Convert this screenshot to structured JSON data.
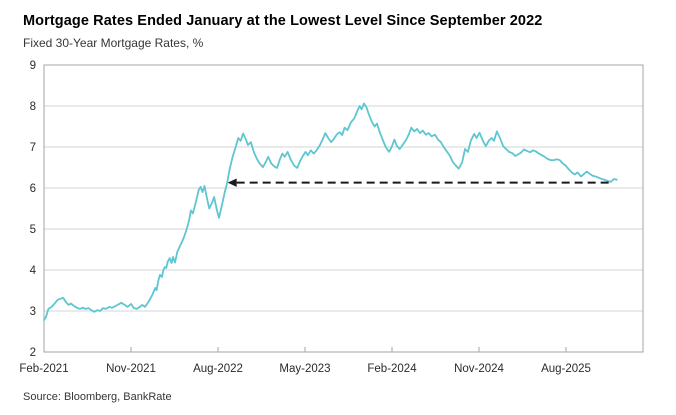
{
  "header": {
    "title": "Mortgage Rates Ended January at the Lowest Level Since September 2022",
    "subtitle": "Fixed 30-Year Mortgage Rates, %"
  },
  "footer": {
    "source": "Source: Bloomberg, BankRate"
  },
  "chart_data": {
    "type": "line",
    "title": "Mortgage Rates Ended January at the Lowest Level Since September 2022",
    "subtitle": "Fixed 30-Year Mortgage Rates, %",
    "source": "Source: Bloomberg, BankRate",
    "legend": "none",
    "grid": "horizontal",
    "colors": {
      "line": "#5ec6d0",
      "grid": "#d6d6d6",
      "axis": "#a6a6a6",
      "annotation": "#1a1a1a",
      "tick_text": "#2b2b2b"
    },
    "x_axis": {
      "unit": "months since Feb-2021",
      "range": [
        0,
        62
      ],
      "ticks": [
        {
          "m": 0,
          "label": "Feb-2021"
        },
        {
          "m": 9,
          "label": "Nov-2021"
        },
        {
          "m": 18,
          "label": "Aug-2022"
        },
        {
          "m": 27,
          "label": "May-2023"
        },
        {
          "m": 36,
          "label": "Feb-2024"
        },
        {
          "m": 45,
          "label": "Nov-2024"
        },
        {
          "m": 54,
          "label": "Aug-2025"
        }
      ]
    },
    "y_axis": {
      "range": [
        2,
        9
      ],
      "ticks": [
        9,
        8,
        7,
        6,
        5,
        4,
        3,
        2
      ],
      "gridline_values": [
        3,
        4,
        5,
        6,
        7,
        8
      ]
    },
    "annotation": {
      "type": "dashed-horizontal-arrow-left",
      "value": 6.13,
      "from_month": 19.0,
      "to_month": 58.75
    },
    "series": [
      {
        "name": "Fixed 30-Year Mortgage Rate, %",
        "color": "#5ec6d0",
        "points": [
          [
            0,
            2.78
          ],
          [
            0.2,
            2.85
          ],
          [
            0.45,
            3.05
          ],
          [
            0.8,
            3.1
          ],
          [
            1.1,
            3.18
          ],
          [
            1.4,
            3.27
          ],
          [
            1.7,
            3.3
          ],
          [
            2.0,
            3.32
          ],
          [
            2.25,
            3.22
          ],
          [
            2.55,
            3.15
          ],
          [
            2.8,
            3.18
          ],
          [
            3.1,
            3.12
          ],
          [
            3.4,
            3.08
          ],
          [
            3.7,
            3.05
          ],
          [
            4.0,
            3.08
          ],
          [
            4.3,
            3.05
          ],
          [
            4.6,
            3.07
          ],
          [
            4.9,
            3.02
          ],
          [
            5.2,
            2.98
          ],
          [
            5.5,
            3.02
          ],
          [
            5.8,
            3.0
          ],
          [
            6.1,
            3.07
          ],
          [
            6.4,
            3.05
          ],
          [
            6.75,
            3.1
          ],
          [
            7.05,
            3.08
          ],
          [
            7.4,
            3.12
          ],
          [
            7.7,
            3.16
          ],
          [
            8.0,
            3.2
          ],
          [
            8.35,
            3.15
          ],
          [
            8.65,
            3.1
          ],
          [
            9.0,
            3.17
          ],
          [
            9.3,
            3.07
          ],
          [
            9.6,
            3.05
          ],
          [
            9.9,
            3.1
          ],
          [
            10.15,
            3.15
          ],
          [
            10.45,
            3.1
          ],
          [
            10.8,
            3.22
          ],
          [
            11.2,
            3.39
          ],
          [
            11.5,
            3.56
          ],
          [
            11.65,
            3.51
          ],
          [
            11.85,
            3.76
          ],
          [
            12.0,
            3.88
          ],
          [
            12.2,
            3.83
          ],
          [
            12.35,
            4.0
          ],
          [
            12.5,
            4.07
          ],
          [
            12.65,
            4.05
          ],
          [
            12.8,
            4.2
          ],
          [
            13.0,
            4.29
          ],
          [
            13.2,
            4.17
          ],
          [
            13.35,
            4.32
          ],
          [
            13.55,
            4.18
          ],
          [
            13.8,
            4.45
          ],
          [
            14.1,
            4.6
          ],
          [
            14.4,
            4.75
          ],
          [
            14.7,
            4.95
          ],
          [
            15.0,
            5.2
          ],
          [
            15.2,
            5.45
          ],
          [
            15.4,
            5.38
          ],
          [
            15.7,
            5.65
          ],
          [
            16.0,
            5.95
          ],
          [
            16.2,
            6.03
          ],
          [
            16.4,
            5.9
          ],
          [
            16.6,
            6.05
          ],
          [
            16.9,
            5.7
          ],
          [
            17.1,
            5.5
          ],
          [
            17.4,
            5.65
          ],
          [
            17.6,
            5.78
          ],
          [
            17.9,
            5.45
          ],
          [
            18.1,
            5.27
          ],
          [
            18.4,
            5.58
          ],
          [
            18.7,
            5.9
          ],
          [
            18.95,
            6.13
          ],
          [
            19.2,
            6.45
          ],
          [
            19.5,
            6.75
          ],
          [
            19.8,
            6.98
          ],
          [
            20.1,
            7.22
          ],
          [
            20.35,
            7.15
          ],
          [
            20.6,
            7.33
          ],
          [
            20.85,
            7.2
          ],
          [
            21.1,
            7.05
          ],
          [
            21.4,
            7.12
          ],
          [
            21.7,
            6.88
          ],
          [
            22.0,
            6.72
          ],
          [
            22.3,
            6.6
          ],
          [
            22.65,
            6.51
          ],
          [
            23.0,
            6.66
          ],
          [
            23.2,
            6.76
          ],
          [
            23.5,
            6.6
          ],
          [
            23.8,
            6.53
          ],
          [
            24.1,
            6.49
          ],
          [
            24.4,
            6.7
          ],
          [
            24.65,
            6.84
          ],
          [
            24.9,
            6.76
          ],
          [
            25.2,
            6.88
          ],
          [
            25.55,
            6.68
          ],
          [
            25.9,
            6.54
          ],
          [
            26.2,
            6.49
          ],
          [
            26.5,
            6.66
          ],
          [
            26.8,
            6.79
          ],
          [
            27.05,
            6.88
          ],
          [
            27.3,
            6.8
          ],
          [
            27.6,
            6.92
          ],
          [
            27.9,
            6.84
          ],
          [
            28.2,
            6.92
          ],
          [
            28.55,
            7.05
          ],
          [
            28.85,
            7.2
          ],
          [
            29.1,
            7.34
          ],
          [
            29.4,
            7.22
          ],
          [
            29.7,
            7.12
          ],
          [
            30.0,
            7.2
          ],
          [
            30.3,
            7.31
          ],
          [
            30.6,
            7.36
          ],
          [
            30.85,
            7.29
          ],
          [
            31.1,
            7.47
          ],
          [
            31.4,
            7.41
          ],
          [
            31.75,
            7.6
          ],
          [
            32.1,
            7.7
          ],
          [
            32.4,
            7.87
          ],
          [
            32.65,
            8.0
          ],
          [
            32.85,
            7.92
          ],
          [
            33.1,
            8.06
          ],
          [
            33.35,
            7.97
          ],
          [
            33.6,
            7.8
          ],
          [
            33.9,
            7.62
          ],
          [
            34.2,
            7.5
          ],
          [
            34.45,
            7.57
          ],
          [
            34.75,
            7.35
          ],
          [
            35.05,
            7.17
          ],
          [
            35.35,
            7.0
          ],
          [
            35.7,
            6.88
          ],
          [
            36.0,
            7.02
          ],
          [
            36.25,
            7.18
          ],
          [
            36.5,
            7.03
          ],
          [
            36.8,
            6.95
          ],
          [
            37.1,
            7.05
          ],
          [
            37.45,
            7.17
          ],
          [
            37.75,
            7.31
          ],
          [
            38.0,
            7.47
          ],
          [
            38.3,
            7.38
          ],
          [
            38.6,
            7.44
          ],
          [
            38.9,
            7.34
          ],
          [
            39.2,
            7.4
          ],
          [
            39.5,
            7.3
          ],
          [
            39.8,
            7.34
          ],
          [
            40.1,
            7.26
          ],
          [
            40.45,
            7.3
          ],
          [
            40.75,
            7.18
          ],
          [
            41.05,
            7.12
          ],
          [
            41.4,
            6.98
          ],
          [
            41.7,
            6.88
          ],
          [
            42.0,
            6.78
          ],
          [
            42.3,
            6.63
          ],
          [
            42.6,
            6.55
          ],
          [
            42.9,
            6.47
          ],
          [
            43.25,
            6.62
          ],
          [
            43.55,
            6.95
          ],
          [
            43.85,
            6.88
          ],
          [
            44.15,
            7.15
          ],
          [
            44.5,
            7.32
          ],
          [
            44.75,
            7.22
          ],
          [
            45.05,
            7.35
          ],
          [
            45.4,
            7.15
          ],
          [
            45.7,
            7.02
          ],
          [
            46.0,
            7.15
          ],
          [
            46.3,
            7.22
          ],
          [
            46.55,
            7.15
          ],
          [
            46.85,
            7.38
          ],
          [
            47.2,
            7.2
          ],
          [
            47.5,
            7.02
          ],
          [
            47.8,
            6.95
          ],
          [
            48.1,
            6.88
          ],
          [
            48.45,
            6.85
          ],
          [
            48.75,
            6.78
          ],
          [
            49.05,
            6.82
          ],
          [
            49.35,
            6.86
          ],
          [
            49.65,
            6.94
          ],
          [
            50.0,
            6.9
          ],
          [
            50.3,
            6.87
          ],
          [
            50.6,
            6.92
          ],
          [
            50.9,
            6.89
          ],
          [
            51.2,
            6.84
          ],
          [
            51.5,
            6.8
          ],
          [
            51.8,
            6.76
          ],
          [
            52.15,
            6.7
          ],
          [
            52.45,
            6.68
          ],
          [
            52.75,
            6.68
          ],
          [
            53.05,
            6.7
          ],
          [
            53.35,
            6.68
          ],
          [
            53.65,
            6.6
          ],
          [
            54.0,
            6.54
          ],
          [
            54.3,
            6.45
          ],
          [
            54.6,
            6.38
          ],
          [
            54.9,
            6.33
          ],
          [
            55.2,
            6.38
          ],
          [
            55.55,
            6.28
          ],
          [
            55.85,
            6.34
          ],
          [
            56.15,
            6.4
          ],
          [
            56.45,
            6.35
          ],
          [
            56.75,
            6.3
          ],
          [
            57.05,
            6.28
          ],
          [
            57.4,
            6.25
          ],
          [
            57.7,
            6.22
          ],
          [
            58.0,
            6.2
          ],
          [
            58.3,
            6.17
          ],
          [
            58.65,
            6.15
          ],
          [
            58.95,
            6.22
          ],
          [
            59.25,
            6.2
          ]
        ]
      }
    ]
  }
}
